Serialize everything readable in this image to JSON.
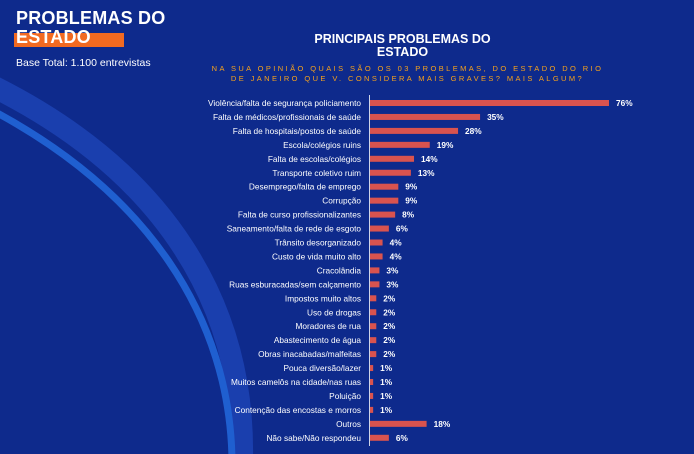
{
  "header": {
    "title_line1": "PROBLEMAS DO",
    "title_line2": "ESTADO",
    "base_total": "Base Total: 1.100 entrevistas"
  },
  "colors": {
    "background": "#0e2a8c",
    "accent_orange": "#f26a21",
    "subtitle": "#f7a21b",
    "bar": "#d9534f",
    "arc": "#1f5fd0"
  },
  "chart_data": {
    "type": "bar",
    "orientation": "horizontal",
    "title_line1": "PRINCIPAIS PROBLEMAS DO",
    "title_line2": "ESTADO",
    "subtitle": "NA SUA OPINIÃO QUAIS SÃO OS 03 PROBLEMAS, DO ESTADO DO RIO DE JANEIRO QUE V. CONSIDERA MAIS GRAVES? MAIS ALGUM?",
    "xlim": [
      0,
      76
    ],
    "grid": false,
    "categories": [
      "Violência/falta de segurança policiamento",
      "Falta de médicos/profissionais de saúde",
      "Falta de hospitais/postos de saúde",
      "Escola/colégios ruins",
      "Falta de escolas/colégios",
      "Transporte coletivo ruim",
      "Desemprego/falta de emprego",
      "Corrupção",
      "Falta de curso profissionalizantes",
      "Saneamento/falta de rede de esgoto",
      "Trânsito desorganizado",
      "Custo de vida muito alto",
      "Cracolândia",
      "Ruas esburacadas/sem calçamento",
      "Impostos muito altos",
      "Uso de drogas",
      "Moradores de rua",
      "Abastecimento de água",
      "Obras inacabadas/malfeitas",
      "Pouca diversão/lazer",
      "Muitos camelôs na cidade/nas ruas",
      "Poluição",
      "Contenção das encostas e morros",
      "Outros",
      "Não sabe/Não respondeu"
    ],
    "values": [
      76,
      35,
      28,
      19,
      14,
      13,
      9,
      9,
      8,
      6,
      4,
      4,
      3,
      3,
      2,
      2,
      2,
      2,
      2,
      1,
      1,
      1,
      1,
      18,
      6
    ],
    "value_labels": [
      "76%",
      "35%",
      "28%",
      "19%",
      "14%",
      "13%",
      "9%",
      "9%",
      "8%",
      "6%",
      "4%",
      "4%",
      "3%",
      "3%",
      "2%",
      "2%",
      "2%",
      "2%",
      "2%",
      "1%",
      "1%",
      "1%",
      "1%",
      "18%",
      "6%"
    ]
  }
}
